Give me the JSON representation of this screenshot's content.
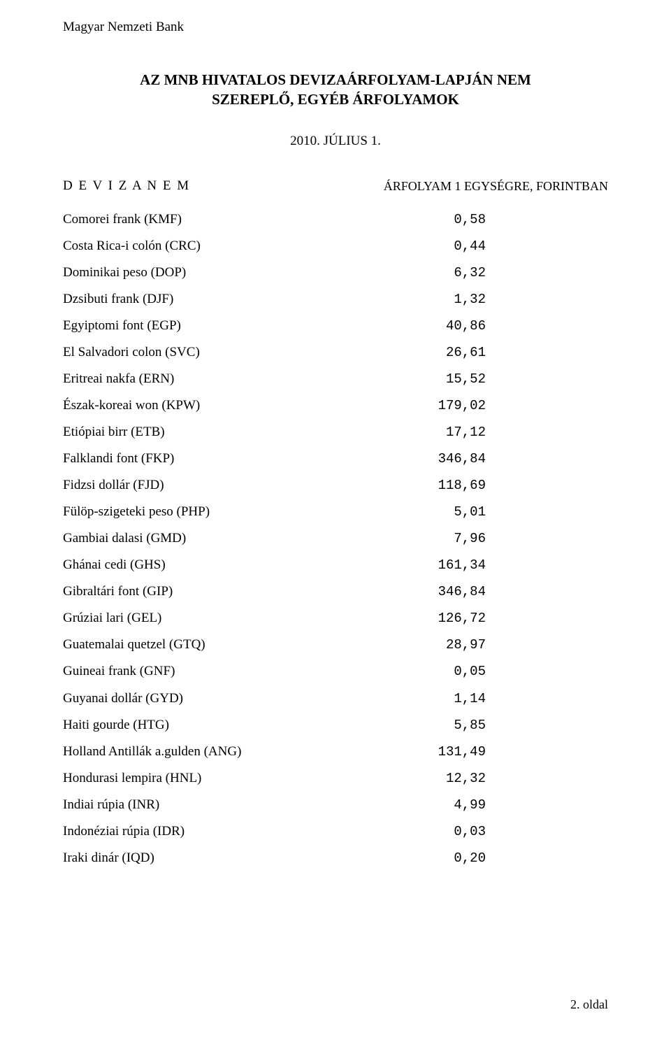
{
  "org_name": "Magyar Nemzeti Bank",
  "title_line1": "AZ MNB HIVATALOS  DEVIZAÁRFOLYAM-LAPJÁN NEM",
  "title_line2": "SZEREPLŐ, EGYÉB ÁRFOLYAMOK",
  "date": "2010. JÚLIUS  1.",
  "subhead_left": "D E V I Z A N E M",
  "subhead_right": "ÁRFOLYAM 1 EGYSÉGRE, FORINTBAN",
  "rows": [
    {
      "label": "Comorei frank (KMF)",
      "value": "0,58"
    },
    {
      "label": "Costa Rica-i colón (CRC)",
      "value": "0,44"
    },
    {
      "label": "Dominikai peso (DOP)",
      "value": "6,32"
    },
    {
      "label": "Dzsibuti frank (DJF)",
      "value": "1,32"
    },
    {
      "label": "Egyiptomi font (EGP)",
      "value": "40,86"
    },
    {
      "label": "El Salvadori colon (SVC)",
      "value": "26,61"
    },
    {
      "label": "Eritreai nakfa (ERN)",
      "value": "15,52"
    },
    {
      "label": "Észak-koreai won (KPW)",
      "value": "179,02"
    },
    {
      "label": "Etiópiai birr (ETB)",
      "value": "17,12"
    },
    {
      "label": "Falklandi font (FKP)",
      "value": "346,84"
    },
    {
      "label": "Fidzsi dollár (FJD)",
      "value": "118,69"
    },
    {
      "label": "Fülöp-szigeteki peso (PHP)",
      "value": "5,01"
    },
    {
      "label": "Gambiai dalasi (GMD)",
      "value": "7,96"
    },
    {
      "label": "Ghánai cedi (GHS)",
      "value": "161,34"
    },
    {
      "label": "Gibraltári font (GIP)",
      "value": "346,84"
    },
    {
      "label": "Grúziai lari (GEL)",
      "value": "126,72"
    },
    {
      "label": "Guatemalai quetzel (GTQ)",
      "value": "28,97"
    },
    {
      "label": "Guineai frank (GNF)",
      "value": "0,05"
    },
    {
      "label": "Guyanai dollár (GYD)",
      "value": "1,14"
    },
    {
      "label": "Haiti gourde (HTG)",
      "value": "5,85"
    },
    {
      "label": "Holland Antillák a.gulden (ANG)",
      "value": "131,49"
    },
    {
      "label": "Hondurasi lempira (HNL)",
      "value": "12,32"
    },
    {
      "label": "Indiai rúpia (INR)",
      "value": "4,99"
    },
    {
      "label": "Indonéziai rúpia (IDR)",
      "value": "0,03"
    },
    {
      "label": "Iraki dinár (IQD)",
      "value": "0,20"
    }
  ],
  "page_number": "2. oldal",
  "colors": {
    "background": "#ffffff",
    "text": "#000000"
  },
  "fonts": {
    "body_family": "Times New Roman",
    "value_family": "Courier New",
    "body_size_pt": 14,
    "title_size_pt": 16
  }
}
